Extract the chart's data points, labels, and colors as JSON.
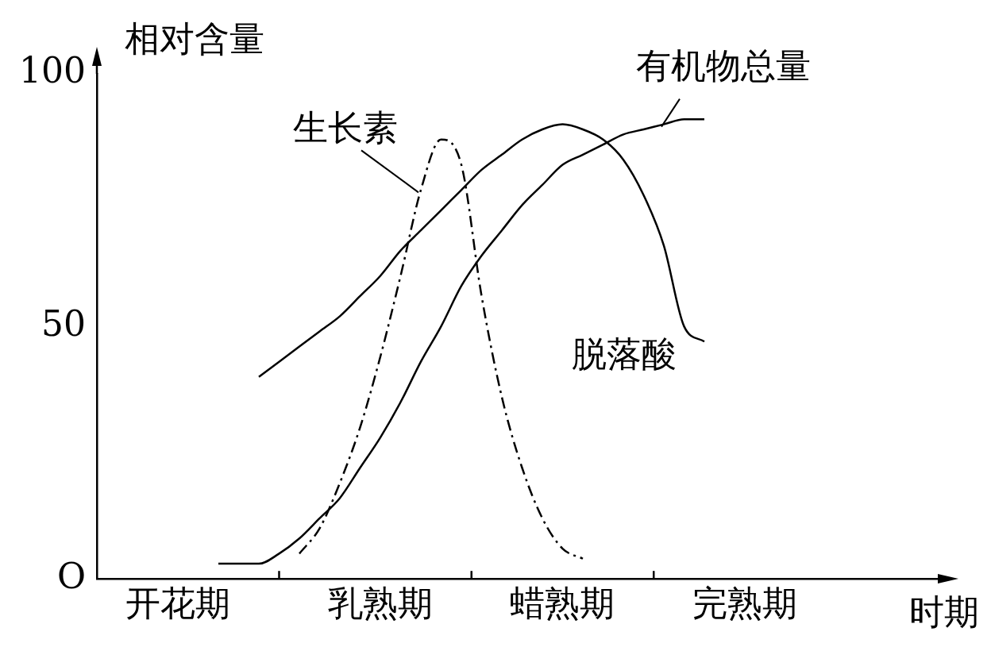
{
  "chart_data": {
    "type": "line",
    "ylabel": "相对含量",
    "xlabel": "时期",
    "categories": [
      null,
      null,
      null,
      null,
      "开花期",
      null,
      null,
      null,
      null,
      null,
      null,
      null,
      null,
      null,
      "乳熟期",
      null,
      null,
      null,
      null,
      null,
      null,
      null,
      null,
      "蜡熟期",
      null,
      null,
      null,
      null,
      null,
      null,
      null,
      null,
      "完熟期",
      null,
      null,
      null,
      null,
      null,
      null,
      null,
      null,
      null,
      null
    ],
    "ylim": [
      0,
      100
    ],
    "yticks": [
      {
        "value": 0,
        "label": "O"
      },
      50,
      100
    ],
    "grid": false,
    "legend": false,
    "marker": "none",
    "series": [
      {
        "name": "有机物总量",
        "color": "#000000",
        "line_style": "solid",
        "values": [
          null,
          null,
          null,
          null,
          null,
          null,
          3,
          3,
          3,
          5,
          8,
          12,
          16,
          22,
          28,
          35,
          43,
          50,
          58,
          64,
          69,
          74,
          78,
          82,
          84,
          86,
          88,
          89,
          90,
          91,
          91,
          null,
          null,
          null,
          null,
          null,
          null,
          null,
          null,
          null,
          null,
          null,
          null
        ]
      },
      {
        "name": "生长素",
        "color": "#000000",
        "line_style": "dashed",
        "values": [
          null,
          null,
          null,
          null,
          null,
          null,
          null,
          null,
          null,
          null,
          5,
          10,
          19,
          30,
          44,
          60,
          77,
          87,
          82,
          56,
          36,
          22,
          12,
          6,
          4,
          null,
          null,
          null,
          null,
          null,
          null,
          null,
          null,
          null,
          null,
          null,
          null,
          null,
          null,
          null,
          null,
          null,
          null
        ]
      },
      {
        "name": "脱落酸",
        "color": "#000000",
        "line_style": "solid",
        "values": [
          null,
          null,
          null,
          null,
          null,
          null,
          null,
          null,
          40,
          43,
          46,
          49,
          52,
          56,
          60,
          65,
          69,
          73,
          77,
          81,
          84,
          87,
          89,
          90,
          89,
          87,
          83,
          76,
          66,
          50,
          47,
          null,
          null,
          null,
          null,
          null,
          null,
          null,
          null,
          null,
          null,
          null,
          null
        ]
      }
    ]
  }
}
